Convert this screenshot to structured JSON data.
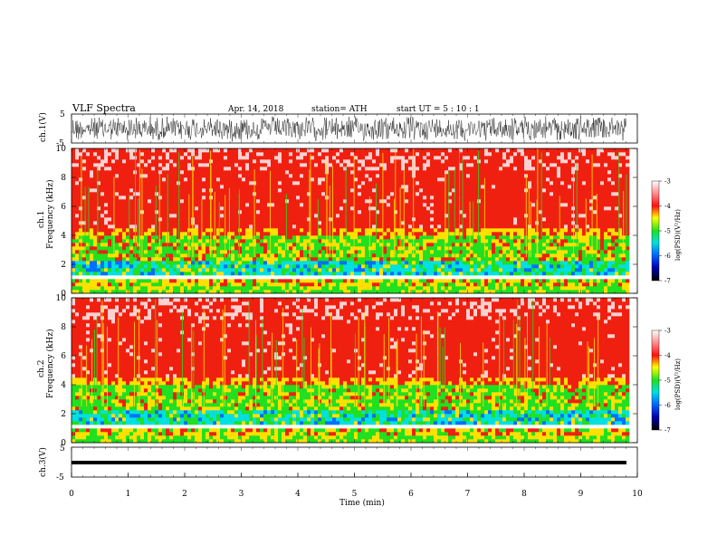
{
  "header": {
    "title": "VLF Spectra",
    "date": "Apr. 14, 2018",
    "station": "station= ATH",
    "start": "start UT =  5 : 10 : 1"
  },
  "colors": {
    "spec_low": "#00e5e5",
    "spec_mid": "#22e022",
    "spec_yellow": "#ffe000",
    "spec_high": "#f02010",
    "spec_top": "#ffd0d0"
  },
  "chart_data": [
    {
      "type": "line",
      "ylabel": "ch.1(V)",
      "ylim": [
        -5,
        5
      ],
      "yticks": [
        "5",
        "-5"
      ],
      "xlim": [
        0,
        10
      ],
      "description_note": ""
    },
    {
      "type": "heatmap",
      "ylabel": "ch.1\nFrequency (kHz)",
      "ylabel_line1": "ch.1",
      "ylabel_line2": "Frequency (kHz)",
      "ylim": [
        0,
        10
      ],
      "yticks": [
        "0",
        "2",
        "4",
        "6",
        "8",
        "10"
      ],
      "xlim": [
        0,
        10
      ],
      "colorbar": {
        "label": "log(PSD)(V²/Hz)",
        "range": [
          -7,
          -3
        ],
        "ticks": [
          "-3",
          "-4",
          "-5",
          "-6",
          "-7"
        ]
      }
    },
    {
      "type": "heatmap",
      "ylabel_line1": "ch.2",
      "ylabel_line2": "Frequency (kHz)",
      "ylim": [
        0,
        10
      ],
      "yticks": [
        "0",
        "2",
        "4",
        "6",
        "8",
        "10"
      ],
      "xlim": [
        0,
        10
      ],
      "colorbar": {
        "label": "log(PSD)(V²/Hz)",
        "range": [
          -7,
          -3
        ],
        "ticks": [
          "-3",
          "-4",
          "-5",
          "-6",
          "-7"
        ]
      }
    },
    {
      "type": "line",
      "ylabel": "ch.3(V)",
      "ylim": [
        -5,
        5
      ],
      "yticks": [
        "5",
        "-5"
      ],
      "xlim": [
        0,
        10
      ],
      "xlabel": "Time (min)",
      "xticks": [
        "0",
        "1",
        "2",
        "3",
        "4",
        "5",
        "6",
        "7",
        "8",
        "9",
        "10"
      ]
    }
  ]
}
